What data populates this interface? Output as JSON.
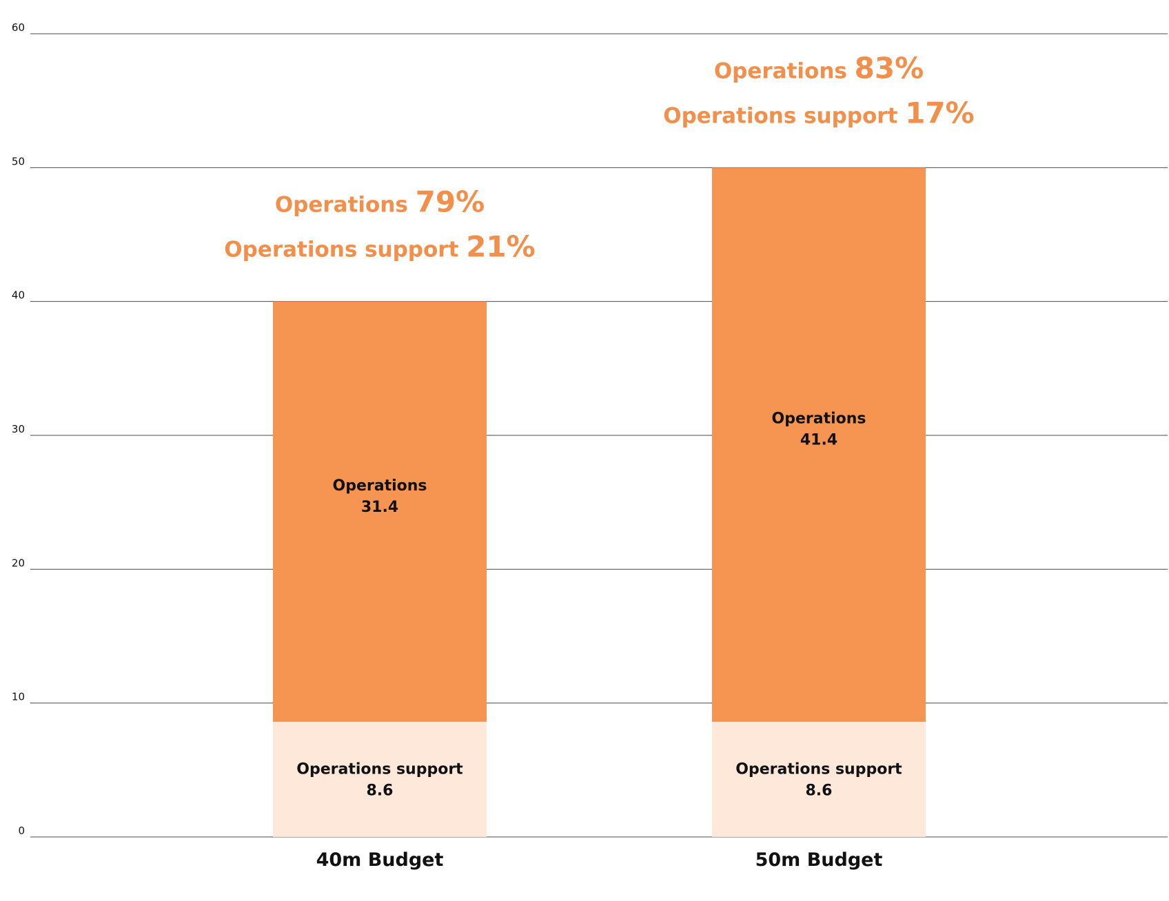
{
  "chart_data": {
    "type": "bar",
    "stacked": true,
    "categories": [
      "40m Budget",
      "50m Budget"
    ],
    "series": [
      {
        "name": "Operations support",
        "values": [
          8.6,
          8.6
        ],
        "color": "#fde8da"
      },
      {
        "name": "Operations",
        "values": [
          31.4,
          41.4
        ],
        "color": "#f69552"
      }
    ],
    "ylim": [
      0,
      60
    ],
    "yticks": [
      0,
      10,
      20,
      30,
      40,
      50,
      60
    ],
    "grid": true,
    "annotations": [
      {
        "category": "40m Budget",
        "lines": [
          {
            "text": "Operations",
            "pct": "79%"
          },
          {
            "text": "Operations support",
            "pct": "21%"
          }
        ]
      },
      {
        "category": "50m Budget",
        "lines": [
          {
            "text": "Operations",
            "pct": "83%"
          },
          {
            "text": "Operations support",
            "pct": "17%"
          }
        ]
      }
    ],
    "annotation_color": "#f28f4b",
    "label_color": "#111111"
  }
}
